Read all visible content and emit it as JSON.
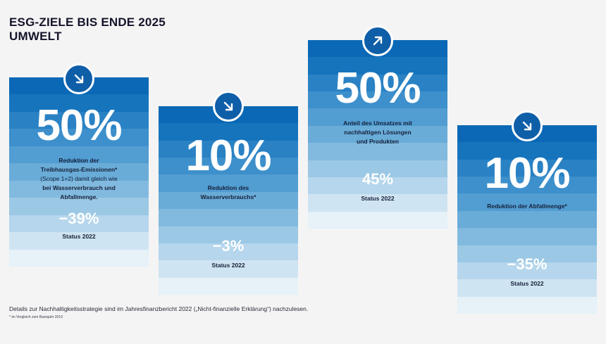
{
  "header": {
    "line1": "ESG-ZIELE BIS ENDE 2025",
    "line2": "UMWELT"
  },
  "colors": {
    "badge": "#0f5ea8",
    "bands": [
      "#0a68b6",
      "#1674bd",
      "#2a82c4",
      "#3d90cb",
      "#529dd2",
      "#6aacd8",
      "#82badf",
      "#9bc8e5",
      "#b5d6ec",
      "#cfe4f2",
      "#e6f1f8"
    ]
  },
  "cards": [
    {
      "icon": "arrow-down-right-icon",
      "value": "50%",
      "desc_lines": [
        "Reduktion der",
        "Treibhausgas-Emissionen*"
      ],
      "desc_light": [
        "(Scope 1+2) damit gleich wie"
      ],
      "desc_lines2": [
        "bei Wasserverbrauch und",
        "Abfallmenge."
      ],
      "status_value": "−39%",
      "status_label": "Status 2022"
    },
    {
      "icon": "arrow-down-right-icon",
      "value": "10%",
      "desc_lines": [
        "Reduktion des",
        "Wasserverbrauchs*"
      ],
      "desc_light": [],
      "desc_lines2": [],
      "status_value": "−3%",
      "status_label": "Status 2022"
    },
    {
      "icon": "arrow-up-right-icon",
      "value": "50%",
      "desc_lines": [
        "Anteil des Umsatzes mit",
        "nachhaltigen Lösungen",
        "und Produkten"
      ],
      "desc_light": [],
      "desc_lines2": [],
      "status_value": "45%",
      "status_label": "Status 2022"
    },
    {
      "icon": "arrow-down-right-icon",
      "value": "10%",
      "desc_lines": [
        "Reduktion der Abfallmenge*"
      ],
      "desc_light": [],
      "desc_lines2": [],
      "status_value": "−35%",
      "status_label": "Status 2022"
    }
  ],
  "footer": {
    "text": "Details zur Nachhaltigkeitsstrategie sind im Jahresfinanzbericht 2022 („Nicht-finanzielle Erklärung“) nachzulesen.",
    "footnote": "* im Vergleich zum Basisjahr 2019"
  }
}
